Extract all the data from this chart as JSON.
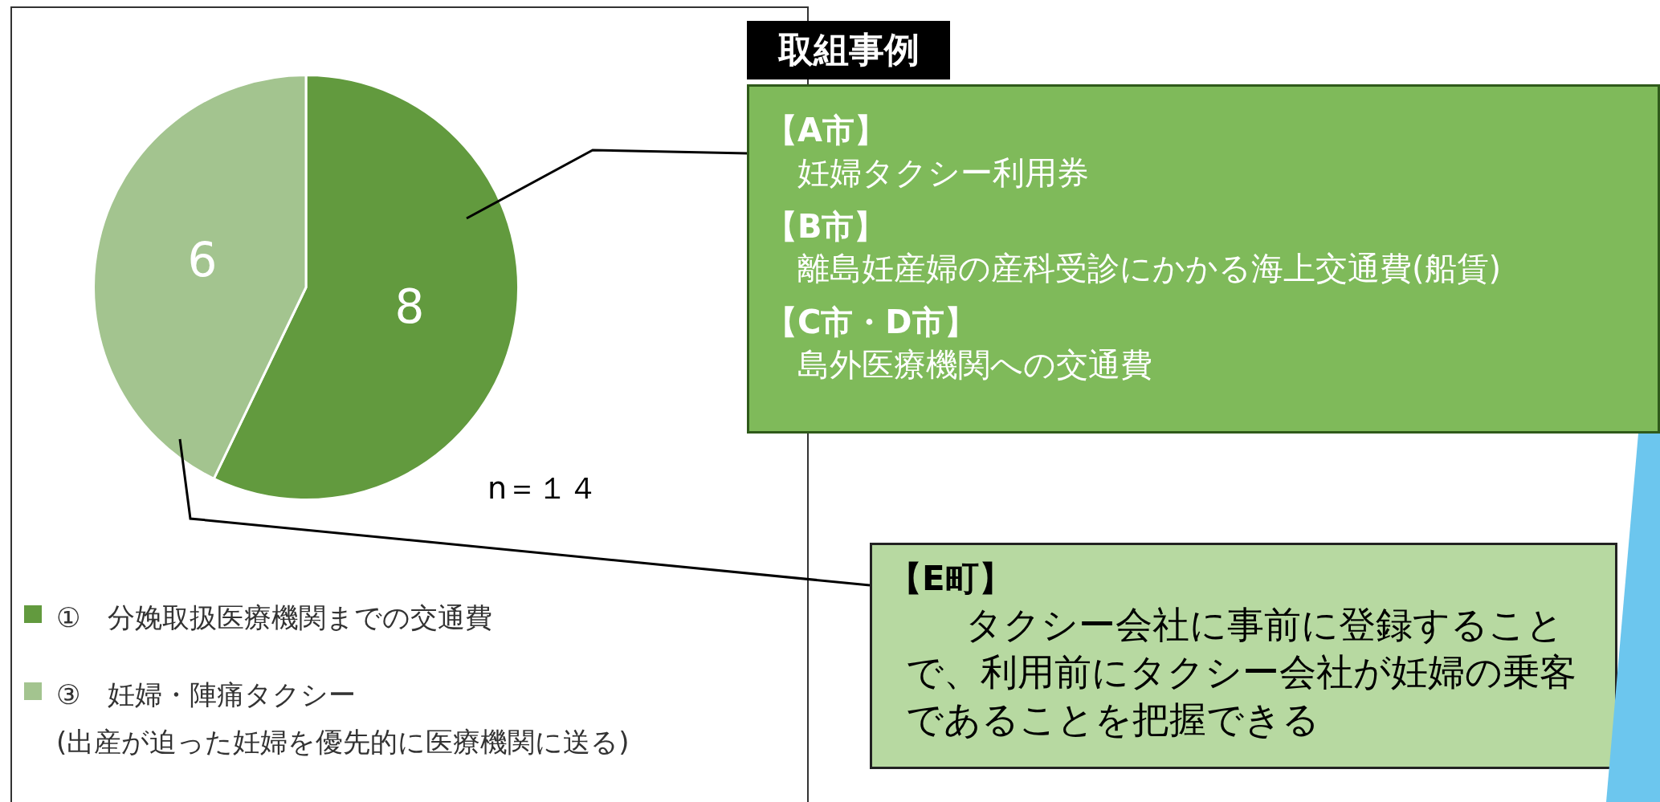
{
  "chart_data": {
    "type": "pie",
    "categories": [
      "①　分娩取扱医療機関までの交通費",
      "③　妊婦・陣痛タクシー\n(出産が迫った妊婦を優先的に医療機関に送る)"
    ],
    "values": [
      8,
      6
    ],
    "colors": [
      "#629a3e",
      "#a3c48f"
    ],
    "data_labels": true,
    "legend": "bottom",
    "annotations": [
      "n＝１４",
      "取組事例",
      "【A市】",
      "妊婦タクシー利用券",
      "【B市】",
      "離島妊産婦の産科受診にかかる海上交通費(船賃)",
      "【C市・D市】",
      "島外医療機関への交通費",
      "【E町】",
      "タクシー会社に事前に登録することで、利用前にタクシー会社が妊婦の乗客であることを把握できる"
    ]
  }
}
